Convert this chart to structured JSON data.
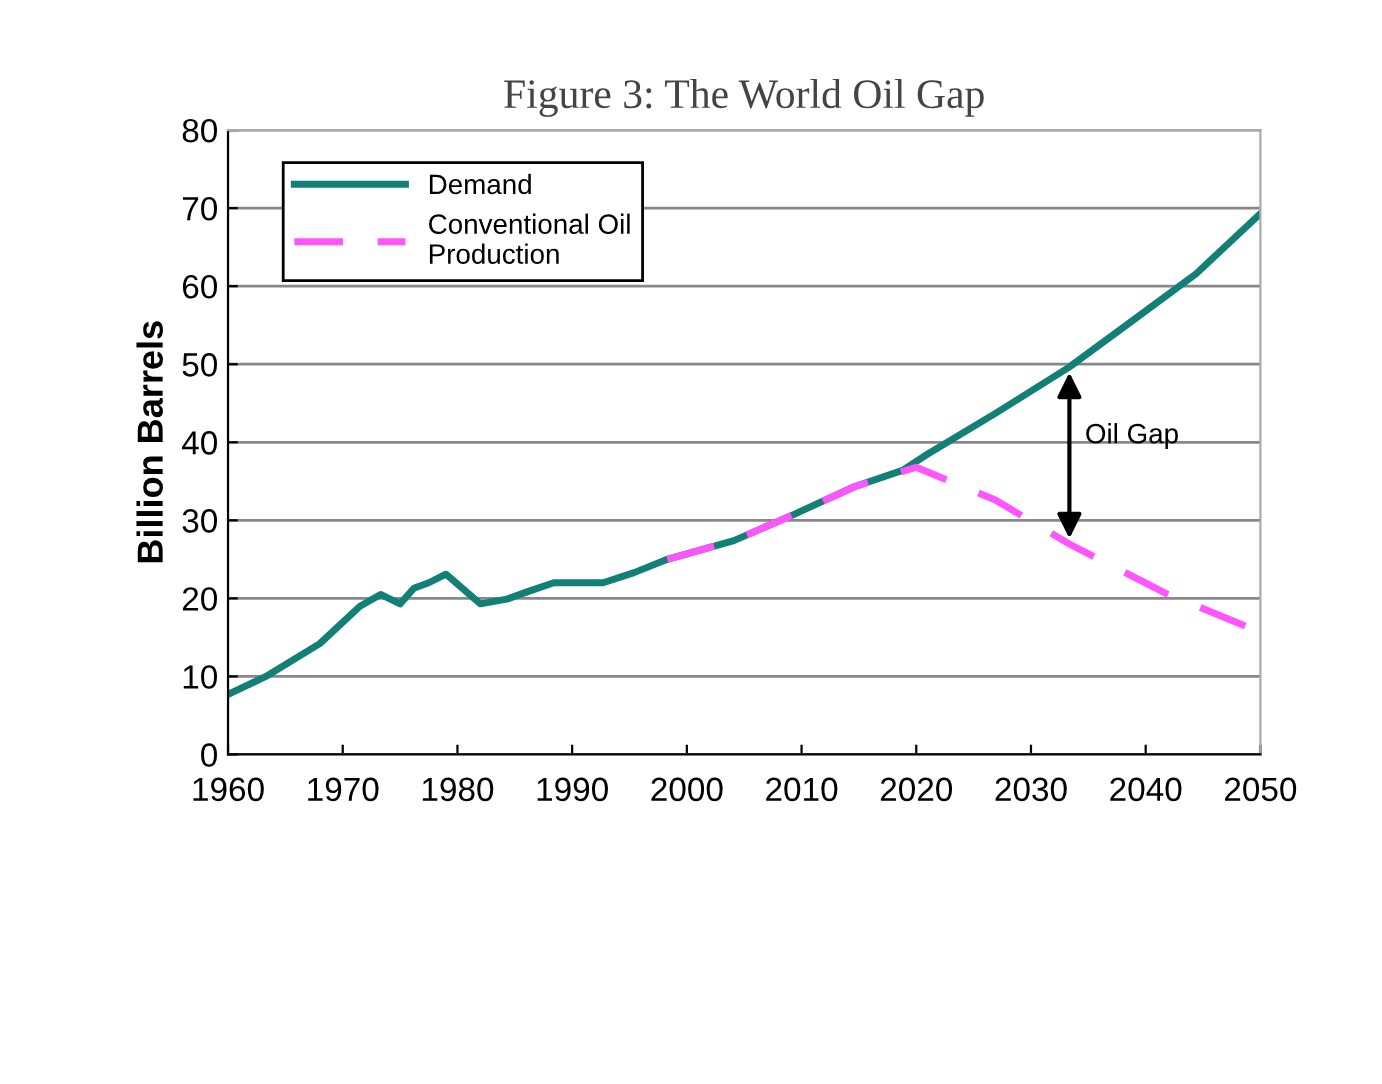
{
  "chart_data": {
    "type": "line",
    "title": "Figure 3: The World Oil Gap",
    "ylabel": "Billion Barrels",
    "series": [
      {
        "name": "Demand",
        "color": "#138078",
        "line_style": "solid",
        "x": [
          1960,
          1963.3,
          1968,
          1971.5,
          1973.3,
          1975,
          1976.2,
          1977.5,
          1979,
          1982,
          1984.3,
          1986,
          1988.4,
          1992.7,
          1995.4,
          1998.3,
          2004.1,
          2009.4,
          2014.6,
          2018.8,
          2021,
          2026.9,
          2033.3,
          2038.5,
          2044.4,
          2050
        ],
        "values": [
          7.7,
          10.0,
          14.2,
          19.0,
          20.5,
          19.3,
          21.3,
          22.0,
          23.1,
          19.3,
          19.9,
          20.8,
          22.0,
          22.0,
          23.3,
          25.0,
          27.4,
          30.8,
          34.3,
          36.4,
          38.5,
          43.7,
          49.6,
          55.2,
          61.6,
          69.3
        ]
      },
      {
        "name": "Conventional Oil\nProduction",
        "color": "#ff55ff",
        "line_style": "dashed",
        "x": [
          1998.3,
          2004.1,
          2009.4,
          2014.6,
          2020,
          2026.9,
          2033.3,
          2041.8,
          2048.8
        ],
        "values": [
          25.0,
          27.4,
          30.8,
          34.3,
          36.8,
          32.6,
          27.0,
          20.6,
          16.4
        ]
      }
    ],
    "annotations": [
      "Oil Gap"
    ],
    "xlim": [
      1960,
      2050
    ],
    "xticks": [
      1960,
      1970,
      1980,
      1990,
      2000,
      2010,
      2020,
      2030,
      2040,
      2050
    ],
    "ylim": [
      0,
      80
    ],
    "yticks": [
      0,
      10,
      20,
      30,
      40,
      50,
      60,
      70,
      80
    ],
    "grid": "y",
    "legend": "top left",
    "marker": "none"
  }
}
